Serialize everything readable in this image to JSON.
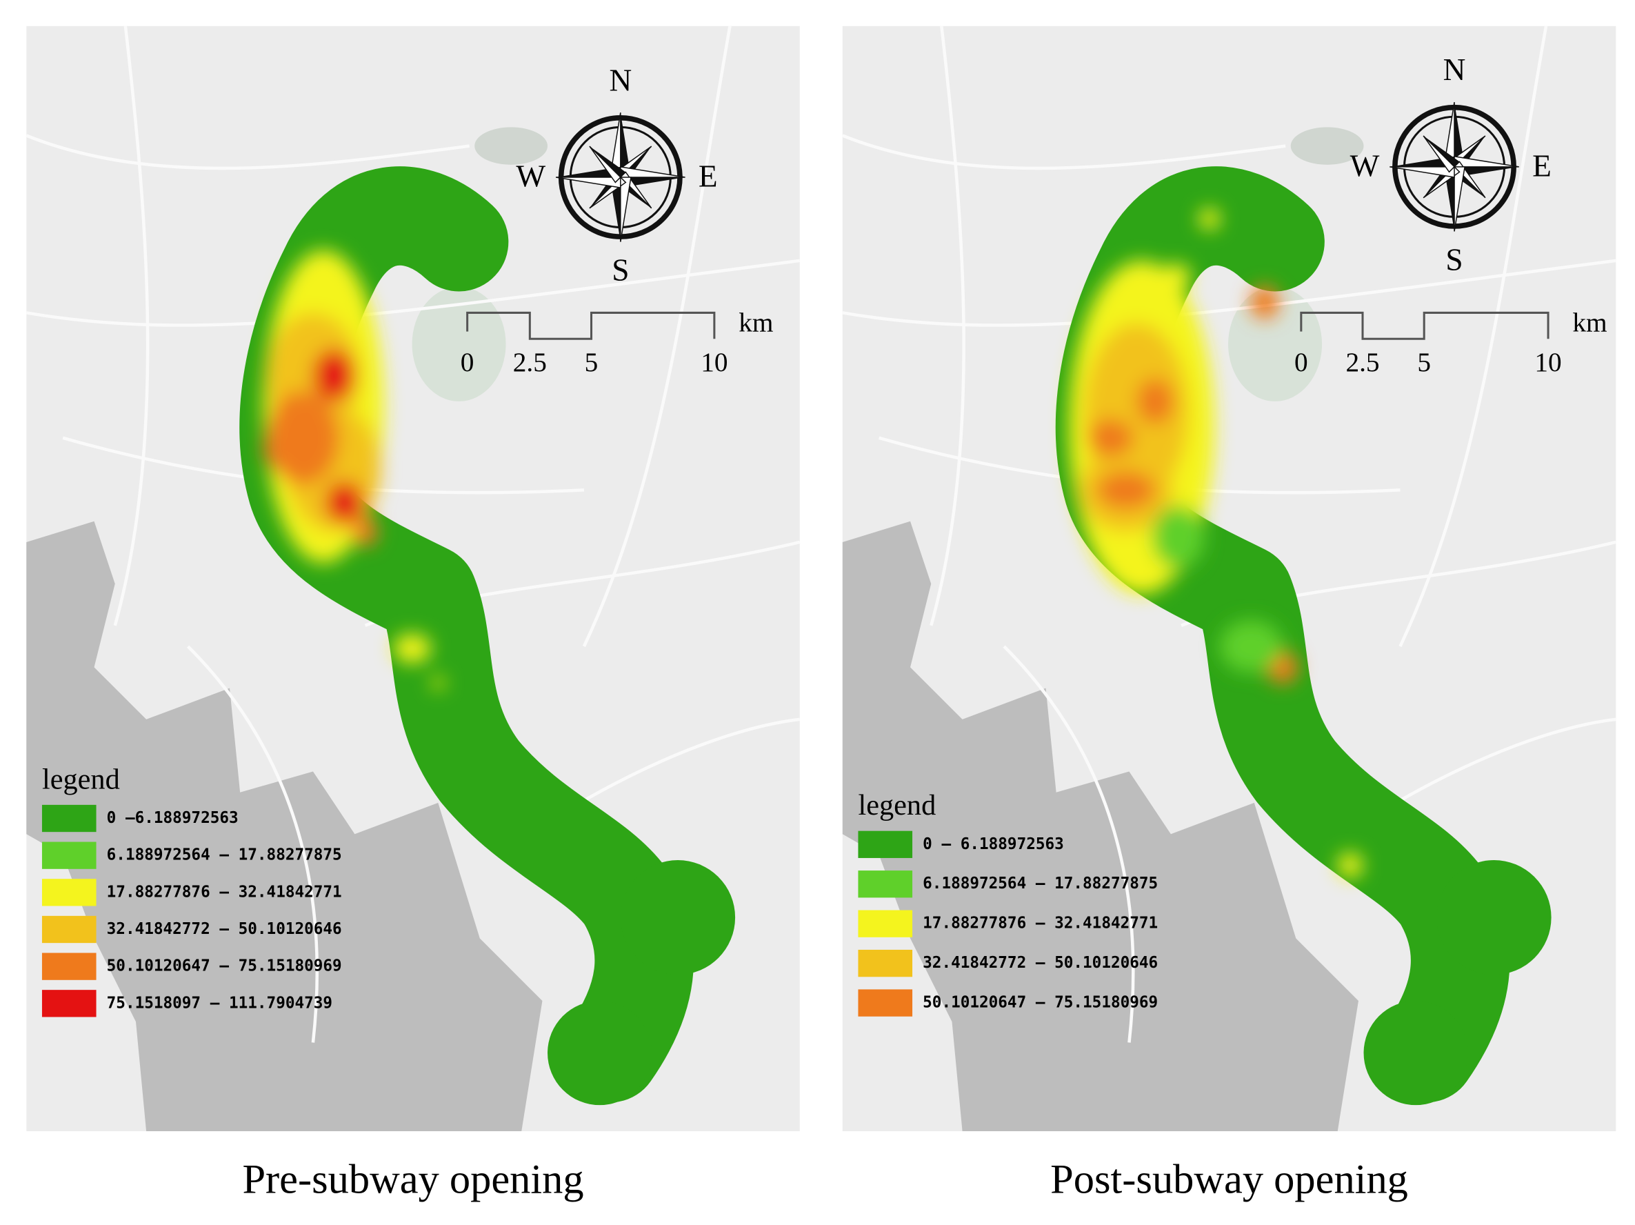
{
  "panels": [
    {
      "title": "Pre-subway opening",
      "compass": {
        "n": "N",
        "e": "E",
        "s": "S",
        "w": "W"
      },
      "scale_bar": {
        "labels": [
          "0",
          "2.5",
          "5",
          "10"
        ],
        "unit": "km"
      },
      "legend": {
        "title": "legend",
        "items": [
          {
            "label": "0 –6.188972563",
            "color": "#2ea516"
          },
          {
            "label": "6.188972564 – 17.88277875",
            "color": "#5fd02a"
          },
          {
            "label": "17.88277876 – 32.41842771",
            "color": "#f4f41e"
          },
          {
            "label": "32.41842772 – 50.10120646",
            "color": "#f2c21c"
          },
          {
            "label": "50.10120647 – 75.15180969",
            "color": "#ef7a1c"
          },
          {
            "label": "75.1518097 – 111.7904739",
            "color": "#e41212"
          }
        ]
      }
    },
    {
      "title": "Post-subway opening",
      "compass": {
        "n": "N",
        "e": "E",
        "s": "S",
        "w": "W"
      },
      "scale_bar": {
        "labels": [
          "0",
          "2.5",
          "5",
          "10"
        ],
        "unit": "km"
      },
      "legend": {
        "title": "legend",
        "items": [
          {
            "label": "0 – 6.188972563",
            "color": "#2ea516"
          },
          {
            "label": "6.188972564 – 17.88277875",
            "color": "#5fd02a"
          },
          {
            "label": "17.88277876 – 32.41842771",
            "color": "#f4f41e"
          },
          {
            "label": "32.41842772 – 50.10120646",
            "color": "#f2c21c"
          },
          {
            "label": "50.10120647 – 75.15180969",
            "color": "#ef7a1c"
          }
        ]
      }
    }
  ]
}
